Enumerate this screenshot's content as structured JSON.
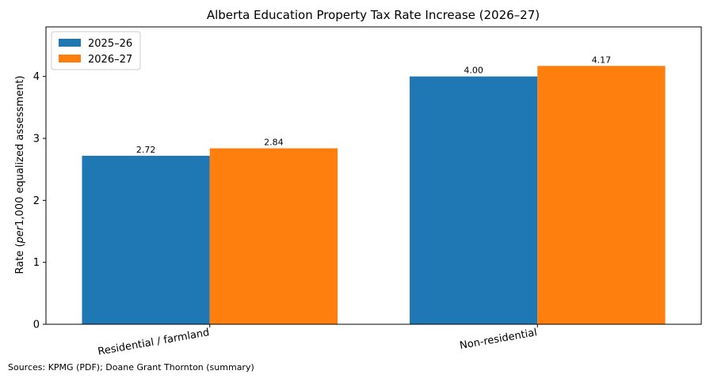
{
  "chart_data": {
    "type": "bar",
    "title": "Alberta Education Property Tax Rate Increase (2026–27)",
    "ylabel": "Rate (per1,000 equalized assessment)",
    "ylabel_plain": "Rate (",
    "ylabel_italic": "per",
    "ylabel_rest": "1,000 equalized assessment)",
    "xlabel": "",
    "categories": [
      "Residential / farmland",
      "Non-residential"
    ],
    "series": [
      {
        "name": "2025–26",
        "color": "#1f77b4",
        "values": [
          2.72,
          4.0
        ],
        "labels": [
          "2.72",
          "4.00"
        ]
      },
      {
        "name": "2026–27",
        "color": "#ff7f0e",
        "values": [
          2.84,
          4.17
        ],
        "labels": [
          "2.84",
          "4.17"
        ]
      }
    ],
    "ylim": [
      0,
      4.8
    ],
    "yticks": [
      0,
      1,
      2,
      3,
      4
    ],
    "grid": false,
    "legend_position": "top-left"
  },
  "source_note": "Sources: KPMG (PDF); Doane Grant Thornton (summary)"
}
